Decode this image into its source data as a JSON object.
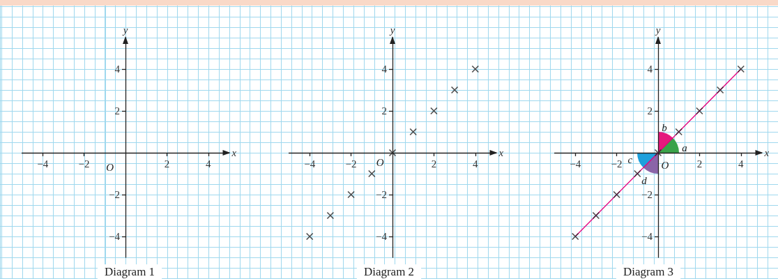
{
  "chart_data": [
    {
      "type": "scatter",
      "title": "Diagram 1",
      "xlabel": "x",
      "ylabel": "y",
      "xlim": [
        -5,
        5
      ],
      "ylim": [
        -5,
        5.5
      ],
      "xticks": [
        -4,
        -2,
        2,
        4
      ],
      "yticks": [
        -4,
        -2,
        2,
        4
      ],
      "grid": false,
      "annotations": [
        "O"
      ]
    },
    {
      "type": "scatter",
      "title": "Diagram 2",
      "xlabel": "x",
      "ylabel": "y",
      "xlim": [
        -5,
        5
      ],
      "ylim": [
        -5,
        5.5
      ],
      "xticks": [
        -4,
        -2,
        2,
        4
      ],
      "yticks": [
        -4,
        -2,
        2,
        4
      ],
      "grid": false,
      "marker": "cross",
      "annotations": [
        "O"
      ],
      "series": [
        {
          "color": "#222222",
          "x": [
            -4,
            -3,
            -2,
            -1,
            0,
            1,
            2,
            3,
            4
          ],
          "values": [
            -4,
            -3,
            -2,
            -1,
            0,
            1,
            2,
            3,
            4
          ]
        }
      ]
    },
    {
      "type": "scatter",
      "title": "Diagram 3",
      "xlabel": "x",
      "ylabel": "y",
      "xlim": [
        -5,
        5
      ],
      "ylim": [
        -5,
        5.5
      ],
      "xticks": [
        -4,
        -2,
        2,
        4
      ],
      "yticks": [
        -4,
        -2,
        2,
        4
      ],
      "grid": false,
      "marker": "cross",
      "annotations": [
        "O",
        "a",
        "b",
        "c",
        "d"
      ],
      "series": [
        {
          "type": "line",
          "color": "#e6007e",
          "marker": "none",
          "line_style": "solid",
          "x": [
            -4,
            4
          ],
          "values": [
            -4,
            4
          ]
        },
        {
          "color": "#222222",
          "x": [
            -4,
            -3,
            -2,
            -1,
            0,
            1,
            2,
            3,
            4
          ],
          "values": [
            -4,
            -3,
            -2,
            -1,
            0,
            1,
            2,
            3,
            4
          ]
        }
      ]
    }
  ]
}
